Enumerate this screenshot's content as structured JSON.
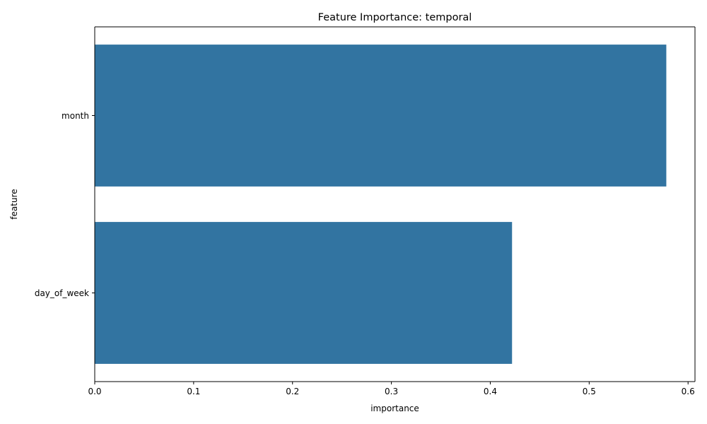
{
  "chart_data": {
    "type": "bar",
    "orientation": "horizontal",
    "title": "Feature Importance: temporal",
    "xlabel": "importance",
    "ylabel": "feature",
    "categories": [
      "month",
      "day_of_week"
    ],
    "values": [
      0.578,
      0.422
    ],
    "xlim": [
      0,
      0.607
    ],
    "xticks": [
      0.0,
      0.1,
      0.2,
      0.3,
      0.4,
      0.5,
      0.6
    ],
    "xtick_labels": [
      "0.0",
      "0.1",
      "0.2",
      "0.3",
      "0.4",
      "0.5",
      "0.6"
    ],
    "grid": false,
    "legend": "none",
    "colors": {
      "bar": "#3274a1",
      "axis": "#000000",
      "background": "#ffffff"
    }
  }
}
